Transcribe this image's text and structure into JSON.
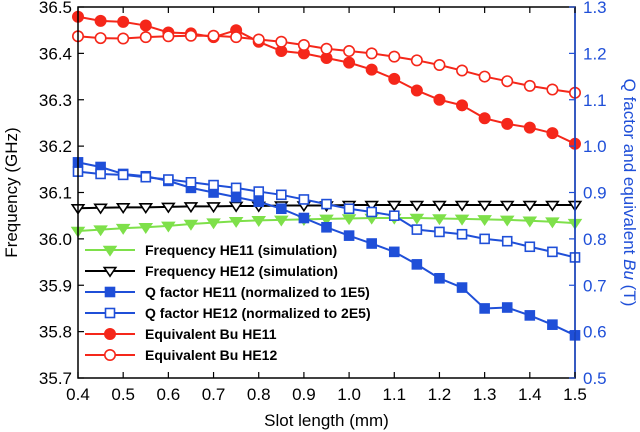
{
  "chart_data": {
    "type": "line",
    "xlabel": "Slot length (mm)",
    "ylabel": "Frequency (GHz)",
    "y2label_prefix": "Q factor and equivalent ",
    "y2label_italic": "Bu",
    "y2label_suffix": " (T)",
    "xlim": [
      0.4,
      1.5
    ],
    "ylim": [
      35.7,
      36.5
    ],
    "y2lim": [
      0.5,
      1.3
    ],
    "x_ticks": [
      "0.4",
      "0.5",
      "0.6",
      "0.7",
      "0.8",
      "0.9",
      "1.0",
      "1.1",
      "1.2",
      "1.3",
      "1.4",
      "1.5"
    ],
    "y_ticks": [
      "35.7",
      "35.8",
      "35.9",
      "36.0",
      "36.1",
      "36.2",
      "36.3",
      "36.4",
      "36.5"
    ],
    "y2_ticks": [
      "0.5",
      "0.6",
      "0.7",
      "0.8",
      "0.9",
      "1.0",
      "1.1",
      "1.2",
      "1.3"
    ],
    "x": [
      0.4,
      0.45,
      0.5,
      0.55,
      0.6,
      0.65,
      0.7,
      0.75,
      0.8,
      0.85,
      0.9,
      0.95,
      1.0,
      1.05,
      1.1,
      1.15,
      1.2,
      1.25,
      1.3,
      1.35,
      1.4,
      1.45,
      1.5
    ],
    "series": [
      {
        "name": "Frequency HE11 (simulation)",
        "axis": "left",
        "color": "#7ee04a",
        "marker": "triangle-down",
        "filled": true,
        "values": [
          36.017,
          36.02,
          36.023,
          36.025,
          36.028,
          36.032,
          36.035,
          36.038,
          36.04,
          36.041,
          36.042,
          36.043,
          36.044,
          36.045,
          36.045,
          36.045,
          36.044,
          36.043,
          36.042,
          36.041,
          36.039,
          36.037,
          36.034
        ]
      },
      {
        "name": "Frequency HE12 (simulation)",
        "axis": "left",
        "color": "#000000",
        "marker": "triangle-down",
        "filled": false,
        "values": [
          36.066,
          36.067,
          36.068,
          36.068,
          36.069,
          36.07,
          36.07,
          36.071,
          36.071,
          36.072,
          36.072,
          36.072,
          36.073,
          36.073,
          36.073,
          36.073,
          36.073,
          36.073,
          36.073,
          36.073,
          36.073,
          36.073,
          36.073
        ]
      },
      {
        "name": "Q factor HE11 (normalized to 1E5)",
        "axis": "right",
        "color": "#1f4fd8",
        "marker": "square",
        "filled": true,
        "values": [
          0.965,
          0.955,
          0.94,
          0.935,
          0.925,
          0.91,
          0.9,
          0.89,
          0.88,
          0.865,
          0.845,
          0.825,
          0.807,
          0.79,
          0.772,
          0.745,
          0.715,
          0.695,
          0.65,
          0.652,
          0.635,
          0.615,
          0.592
        ]
      },
      {
        "name": "Q factor HE12 (normalized to 2E5)",
        "axis": "right",
        "color": "#1f4fd8",
        "marker": "square",
        "filled": false,
        "values": [
          0.945,
          0.94,
          0.938,
          0.933,
          0.928,
          0.922,
          0.916,
          0.91,
          0.902,
          0.895,
          0.885,
          0.875,
          0.865,
          0.858,
          0.85,
          0.82,
          0.815,
          0.81,
          0.8,
          0.795,
          0.783,
          0.772,
          0.76
        ]
      },
      {
        "name": "Equivalent Bu HE11",
        "axis": "right",
        "color": "#f5271a",
        "marker": "circle",
        "filled": true,
        "values": [
          1.279,
          1.27,
          1.268,
          1.26,
          1.245,
          1.243,
          1.235,
          1.25,
          1.225,
          1.205,
          1.2,
          1.19,
          1.18,
          1.165,
          1.145,
          1.12,
          1.1,
          1.088,
          1.06,
          1.048,
          1.04,
          1.028,
          1.005
        ]
      },
      {
        "name": "Equivalent Bu HE12",
        "axis": "right",
        "color": "#f5271a",
        "marker": "circle",
        "filled": false,
        "values": [
          1.237,
          1.233,
          1.232,
          1.235,
          1.237,
          1.238,
          1.238,
          1.235,
          1.23,
          1.225,
          1.218,
          1.21,
          1.205,
          1.2,
          1.193,
          1.185,
          1.175,
          1.163,
          1.15,
          1.14,
          1.13,
          1.122,
          1.115
        ]
      }
    ]
  }
}
